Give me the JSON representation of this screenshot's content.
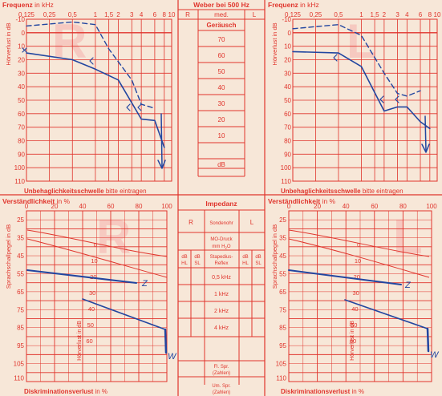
{
  "audiogram_right": {
    "title_bold": "Frequenz",
    "title_rest": " in kHz",
    "freq_labels": [
      "0,125",
      "0,25",
      "0,5",
      "1",
      "1,5",
      "2",
      "3",
      "4",
      "6",
      "8",
      "10"
    ],
    "db_labels": [
      "-10",
      "0",
      "10",
      "20",
      "30",
      "40",
      "50",
      "60",
      "70",
      "80",
      "90",
      "100",
      "110"
    ],
    "ylabel": "Hörverlust in dB",
    "watermark": "R",
    "footer_bold": "Unbehaglichkeitsschwelle",
    "footer_rest": " bitte eintragen",
    "curves": {
      "solid_line": [
        [
          0.125,
          15
        ],
        [
          0.5,
          20
        ],
        [
          1,
          27
        ],
        [
          2,
          35
        ],
        [
          4,
          64
        ],
        [
          6,
          65
        ],
        [
          8,
          85
        ]
      ],
      "dashed_line": [
        [
          0.125,
          -5
        ],
        [
          0.5,
          -8
        ],
        [
          1,
          -6
        ],
        [
          1.5,
          12
        ],
        [
          3,
          35
        ],
        [
          4,
          53
        ],
        [
          6,
          56
        ]
      ],
      "arrow_down_at_khz": 8
    }
  },
  "audiogram_left": {
    "title_bold": "Frequenz",
    "title_rest": " in kHz",
    "freq_labels": [
      "0,125",
      "0,25",
      "0,5",
      "1",
      "1,5",
      "2",
      "3",
      "4",
      "6",
      "8",
      "10"
    ],
    "db_labels": [
      "-10",
      "0",
      "10",
      "20",
      "30",
      "40",
      "50",
      "60",
      "70",
      "80",
      "90",
      "100",
      "110"
    ],
    "ylabel": "Hörverlust in dB",
    "watermark": "L",
    "footer_bold": "Unbehaglichkeitsschwelle",
    "footer_rest": " bitte eintragen",
    "curves": {
      "solid_line": [
        [
          0.125,
          14
        ],
        [
          0.5,
          15
        ],
        [
          1,
          25
        ],
        [
          2,
          58
        ],
        [
          3,
          55
        ],
        [
          4,
          55
        ],
        [
          6,
          66
        ],
        [
          8,
          71
        ]
      ],
      "dashed_line": [
        [
          0.125,
          -3
        ],
        [
          0.5,
          -6
        ],
        [
          1,
          2
        ],
        [
          2,
          30
        ],
        [
          3,
          45
        ],
        [
          4,
          47
        ],
        [
          6,
          43
        ]
      ],
      "arrow_down_at_khz": 8
    }
  },
  "weber": {
    "title": "Weber bei 500 Hz",
    "r": "R",
    "med": "med.",
    "l": "L",
    "geraeusch": "Geräusch",
    "db_labels": [
      "70",
      "60",
      "50",
      "40",
      "30",
      "20",
      "10",
      "dB"
    ]
  },
  "impedanz": {
    "title": "Impedanz",
    "r": "R",
    "sondenohr": "Sondenohr",
    "l": "L",
    "mo_druck": "MO-Druck",
    "mm_h2o_pre": "mm H",
    "mm_h2o_sub": "2",
    "mm_h2o_post": "O",
    "db": "dB",
    "hl": "HL",
    "sl": "SL",
    "stapedius_1": "Stapedius-",
    "stapedius_2": "Reflex",
    "freqs": [
      "0,5 kHz",
      "1 kHz",
      "2 kHz",
      "4 kHz"
    ],
    "fl_1": "Fl. Spr.",
    "fl_2": "(Zahlen)",
    "um_1": "Um. Spr.",
    "um_2": "(Zahlen)"
  },
  "speech_right": {
    "title_bold": "Verständlichkeit",
    "title_rest": " in %",
    "pct_labels": [
      "0",
      "20",
      "40",
      "60",
      "80",
      "100"
    ],
    "db_labels": [
      "25",
      "35",
      "45",
      "55",
      "65",
      "75",
      "85",
      "95",
      "105",
      "110"
    ],
    "ylabel": "Sprachschallpegel in dB",
    "inner_ylabel": "Hörverlust in dB",
    "loss_labels": [
      "0",
      "10",
      "20",
      "30",
      "40",
      "50",
      "60"
    ],
    "watermark": "R",
    "footer_bold": "Diskriminationsverlust",
    "footer_rest": " in %",
    "marks": {
      "z": "Z",
      "w": "W"
    }
  },
  "speech_left": {
    "title_bold": "Verständlichkeit",
    "title_rest": " in %",
    "pct_labels": [
      "0",
      "20",
      "40",
      "60",
      "80",
      "100"
    ],
    "db_labels": [
      "25",
      "35",
      "45",
      "55",
      "65",
      "75",
      "85",
      "95",
      "105",
      "110"
    ],
    "ylabel": "Sprachschallpegel in dB",
    "inner_ylabel": "Hörverlust in dB",
    "loss_labels": [
      "0",
      "10",
      "20",
      "30",
      "40",
      "50",
      "60"
    ],
    "watermark": "L",
    "footer_bold": "Diskriminationsverlust",
    "footer_rest": " in %",
    "marks": {
      "z": "Z",
      "w": "W"
    }
  }
}
